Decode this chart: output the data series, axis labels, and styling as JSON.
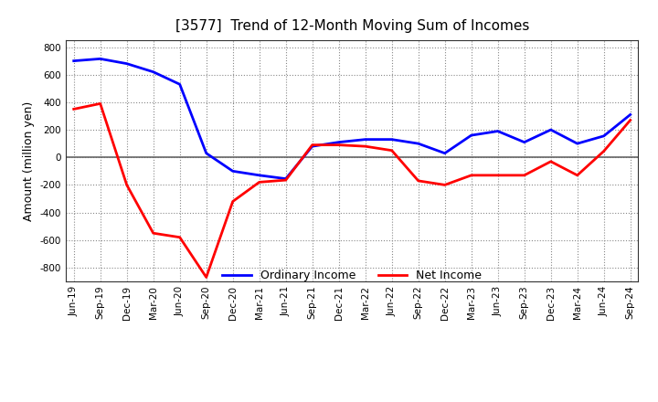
{
  "title": "[3577]  Trend of 12-Month Moving Sum of Incomes",
  "ylabel": "Amount (million yen)",
  "ylim": [
    -900,
    850
  ],
  "yticks": [
    -800,
    -600,
    -400,
    -200,
    0,
    200,
    400,
    600,
    800
  ],
  "bg_color": "#FFFFFF",
  "plot_bg_color": "#FFFFFF",
  "grid_color": "#888888",
  "zero_line_color": "#666666",
  "legend_labels": [
    "Ordinary Income",
    "Net Income"
  ],
  "ordinary_income_color": "#0000FF",
  "net_income_color": "#FF0000",
  "x_labels": [
    "Jun-19",
    "Sep-19",
    "Dec-19",
    "Mar-20",
    "Jun-20",
    "Sep-20",
    "Dec-20",
    "Mar-21",
    "Jun-21",
    "Sep-21",
    "Dec-21",
    "Mar-22",
    "Jun-22",
    "Sep-22",
    "Dec-22",
    "Mar-23",
    "Jun-23",
    "Sep-23",
    "Dec-23",
    "Mar-24",
    "Jun-24",
    "Sep-24"
  ],
  "ordinary_income": [
    700,
    715,
    680,
    620,
    530,
    30,
    -100,
    -130,
    -155,
    80,
    110,
    130,
    130,
    100,
    30,
    160,
    190,
    110,
    200,
    100,
    155,
    310
  ],
  "net_income": [
    350,
    390,
    -200,
    -550,
    -580,
    -870,
    -320,
    -180,
    -165,
    90,
    90,
    80,
    50,
    -170,
    -200,
    -130,
    -130,
    -130,
    -30,
    -130,
    45,
    270
  ],
  "line_width": 2.0,
  "title_fontsize": 11,
  "tick_fontsize": 7.5,
  "ylabel_fontsize": 9,
  "legend_fontsize": 9
}
